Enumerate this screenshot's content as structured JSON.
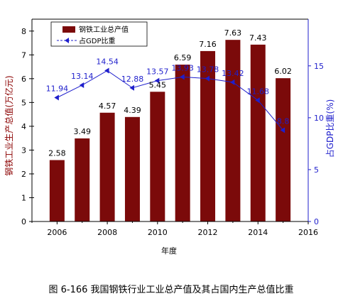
{
  "chart_data": {
    "type": "bar",
    "legend_position": "top-left",
    "grid": false,
    "x": [
      2006,
      2007,
      2008,
      2009,
      2010,
      2011,
      2012,
      2013,
      2014,
      2015
    ],
    "series": [
      {
        "name": "钢铁工业总产值",
        "type": "bar",
        "axis": "left",
        "color": "#7B0A0A",
        "values": [
          2.58,
          3.49,
          4.57,
          4.39,
          5.45,
          6.59,
          7.16,
          7.63,
          7.43,
          6.02
        ],
        "labels": [
          "2.58",
          "3.49",
          "4.57",
          "4.39",
          "5.45",
          "6.59",
          "7.16",
          "7.63",
          "7.43",
          "6.02"
        ]
      },
      {
        "name": "占GDP比重",
        "type": "line",
        "axis": "right",
        "color": "#1F1FCC",
        "values": [
          11.94,
          13.14,
          14.54,
          12.88,
          13.57,
          13.93,
          13.78,
          13.42,
          11.68,
          8.8
        ],
        "labels": [
          "11.94",
          "13.14",
          "14.54",
          "12.88",
          "13.57",
          "13.93",
          "13.78",
          "13.42",
          "11.68",
          "8.8"
        ]
      }
    ],
    "xlabel": "年度",
    "ylabel": "钢铁工业生产总值(万亿元)",
    "y2label": "占GDP比重(%)",
    "xlim": [
      2005,
      2016
    ],
    "ylim": [
      0,
      8.5
    ],
    "y2lim": [
      0,
      19.5
    ],
    "xticks": [
      2006,
      2008,
      2010,
      2012,
      2014,
      2016
    ],
    "yticks": [
      0,
      1,
      2,
      3,
      4,
      5,
      6,
      7,
      8
    ],
    "y2ticks": [
      0,
      5,
      10,
      15
    ],
    "caption": "图 6-166  我国钢铁行业工业总产值及其占国内生产总值比重"
  }
}
